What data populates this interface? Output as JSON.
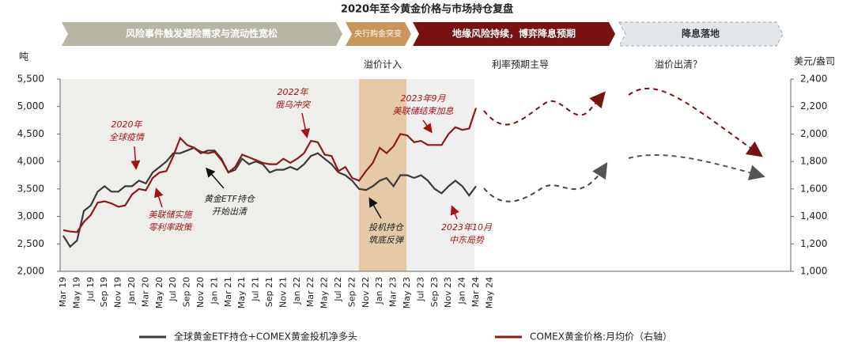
{
  "chart_data": {
    "type": "line",
    "title": "2020年至今黄金价格与市场持仓复盘",
    "phases": [
      "风险事件触发避险需求与流动性宽松",
      "央行购金突变",
      "地缘风险持续，博弈降息预期",
      "降息落地"
    ],
    "sub_labels": [
      "溢价计入",
      "利率预期主导",
      "溢价出清？"
    ],
    "y_axis_label": "吨",
    "y2_axis_label": "美元/盎司",
    "annotations": [
      [
        "2020年",
        "全球疫情"
      ],
      [
        "美联储实施",
        "零利率政策"
      ],
      [
        "黄金ETF持仓",
        "开始出清"
      ],
      [
        "2022年",
        "俄乌冲突"
      ],
      [
        "2023年9月",
        "美联储结束加息"
      ],
      [
        "投机持仓",
        "筑底反弹"
      ],
      [
        "2023年10月",
        "中东局势"
      ]
    ],
    "categories": [
      "Mar 19",
      null,
      "May 19",
      null,
      "Jul 19",
      null,
      "Sep 19",
      null,
      "Nov 19",
      null,
      "Jan 20",
      null,
      "Mar 20",
      null,
      "May 20",
      null,
      "Jul 20",
      null,
      "Sep 20",
      null,
      "Nov 20",
      null,
      "Jan 21",
      null,
      "Mar 21",
      null,
      "May 21",
      null,
      "Jul 21",
      null,
      "Sep 21",
      null,
      "Nov 21",
      null,
      "Jan 22",
      null,
      "Mar 22",
      null,
      "May 22",
      null,
      "Jul 22",
      null,
      "Sep 22",
      null,
      "Nov 22",
      null,
      "Jan 23",
      null,
      "Mar 23",
      null,
      "May 23",
      null,
      "Jul 23",
      null,
      "Sep 23",
      null,
      "Nov 23",
      null,
      "Jan 24",
      null,
      "Mar 24",
      null,
      "May 24"
    ],
    "series": [
      {
        "name": "全球黄金ETF持仓+COMEX黄金投机净多头",
        "color": "#3a3a3a",
        "values": [
          2650,
          2450,
          2560,
          3100,
          3200,
          3450,
          3550,
          3450,
          3450,
          3550,
          3550,
          3650,
          3600,
          3800,
          3900,
          4000,
          4150,
          4150,
          4200,
          4250,
          4150,
          4200,
          4200,
          4050,
          3800,
          3850,
          4050,
          3950,
          4000,
          3950,
          3800,
          3850,
          3850,
          3900,
          3850,
          3950,
          4100,
          4150,
          4050,
          3950,
          3800,
          3750,
          3650,
          3500,
          3480,
          3550,
          3650,
          3700,
          3550,
          3750,
          3750,
          3700,
          3750,
          3650,
          3500,
          3420,
          3550,
          3650,
          3550,
          3380,
          3550,
          null,
          null
        ]
      },
      {
        "name": "COMEX黄金价格:月均价（右轴）",
        "color": "#8b1a1a",
        "axis": "y2",
        "values": [
          1300,
          1290,
          1285,
          1360,
          1410,
          1500,
          1510,
          1495,
          1470,
          1480,
          1560,
          1600,
          1590,
          1680,
          1720,
          1730,
          1840,
          1970,
          1920,
          1900,
          1870,
          1860,
          1870,
          1810,
          1720,
          1760,
          1850,
          1830,
          1810,
          1790,
          1780,
          1780,
          1820,
          1790,
          1820,
          1860,
          1950,
          1940,
          1850,
          1840,
          1730,
          1760,
          1680,
          1660,
          1730,
          1790,
          1900,
          1860,
          1910,
          2000,
          1990,
          1940,
          1950,
          1920,
          1920,
          1920,
          2000,
          2050,
          2030,
          2040,
          2190,
          null,
          null
        ]
      }
    ],
    "ylim": [
      2000,
      5500
    ],
    "yticks": [
      {
        "value": 2000,
        "label": "2,000"
      },
      {
        "value": 2500,
        "label": "2,500"
      },
      {
        "value": 3000,
        "label": "3,000"
      },
      {
        "value": 3500,
        "label": "3,500"
      },
      {
        "value": 4000,
        "label": "4,000"
      },
      {
        "value": 4500,
        "label": "4,500"
      },
      {
        "value": 5000,
        "label": "5,000"
      },
      {
        "value": 5500,
        "label": "5,500"
      }
    ],
    "y2lim": [
      1000,
      2400
    ],
    "y2ticks": [
      {
        "value": 1000,
        "label": "1,000"
      },
      {
        "value": 1200,
        "label": "1,200"
      },
      {
        "value": 1400,
        "label": "1,400"
      },
      {
        "value": 1600,
        "label": "1,600"
      },
      {
        "value": 1800,
        "label": "1,800"
      },
      {
        "value": 2000,
        "label": "2,000"
      },
      {
        "value": 2200,
        "label": "2,200"
      },
      {
        "value": 2400,
        "label": "2,400"
      }
    ],
    "grid": false,
    "legend": "bottom"
  }
}
